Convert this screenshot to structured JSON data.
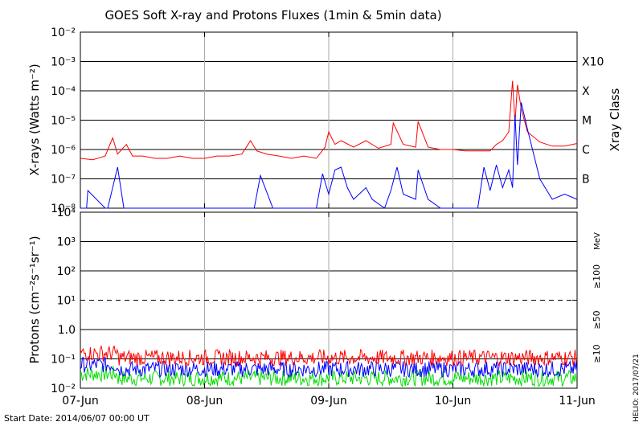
{
  "title": "GOES Soft X-ray and Protons Fluxes   (1min & 5min data)",
  "footer": {
    "start_date": "Start Date: 2014/06/07 00:00 UT",
    "credit": "HELIO: 2017/07/21"
  },
  "chart_data": [
    {
      "panel": "xray",
      "type": "line",
      "ylabel": "X-rays (Watts m⁻²)",
      "yscale": "log",
      "ylim": [
        1e-08,
        0.01
      ],
      "yticks": [
        "10⁻⁸",
        "10⁻⁷",
        "10⁻⁶",
        "10⁻⁵",
        "10⁻⁴",
        "10⁻³",
        "10⁻²"
      ],
      "grid": "horizontal lines at each decade; vertical lines at each day",
      "right_axis_title": "Xray Class",
      "classes": [
        {
          "label": "B",
          "flux": 1e-07
        },
        {
          "label": "C",
          "flux": 1e-06
        },
        {
          "label": "M",
          "flux": 1e-05
        },
        {
          "label": "X",
          "flux": 0.0001
        },
        {
          "label": "X10",
          "flux": 0.001
        }
      ],
      "series": [
        {
          "color": "#ff0000",
          "x": [
            0,
            0.1,
            0.2,
            0.26,
            0.3,
            0.37,
            0.42,
            0.5,
            0.6,
            0.7,
            0.8,
            0.9,
            1.0,
            1.1,
            1.2,
            1.3,
            1.37,
            1.42,
            1.5,
            1.6,
            1.7,
            1.8,
            1.9,
            1.97,
            2.0,
            2.05,
            2.1,
            2.2,
            2.3,
            2.4,
            2.5,
            2.52,
            2.6,
            2.7,
            2.72,
            2.8,
            2.9,
            3.0,
            3.1,
            3.2,
            3.3,
            3.35,
            3.4,
            3.45,
            3.48,
            3.5,
            3.52,
            3.55,
            3.6,
            3.7,
            3.8,
            3.9,
            4.0
          ],
          "y": [
            5e-07,
            4.5e-07,
            6e-07,
            2.5e-06,
            7e-07,
            1.5e-06,
            6e-07,
            6e-07,
            5e-07,
            5e-07,
            6e-07,
            5e-07,
            5e-07,
            6e-07,
            6e-07,
            7e-07,
            2e-06,
            9e-07,
            7e-07,
            6e-07,
            5e-07,
            6e-07,
            5e-07,
            1.2e-06,
            4e-06,
            1.5e-06,
            2e-06,
            1.2e-06,
            2e-06,
            1.1e-06,
            1.5e-06,
            8e-06,
            1.5e-06,
            1.2e-06,
            9e-06,
            1.2e-06,
            1e-06,
            1e-06,
            9e-07,
            9e-07,
            9e-07,
            1.5e-06,
            2e-06,
            4e-06,
            0.00022,
            8e-06,
            0.00016,
            2.5e-05,
            4e-06,
            1.8e-06,
            1.3e-06,
            1.3e-06,
            1.6e-06
          ]
        },
        {
          "color": "#0000ff",
          "x": [
            0,
            0.05,
            0.06,
            0.2,
            0.22,
            0.3,
            0.35,
            0.5,
            0.6,
            0.8,
            1.0,
            1.4,
            1.45,
            1.55,
            1.6,
            1.9,
            1.95,
            2.0,
            2.05,
            2.1,
            2.15,
            2.2,
            2.3,
            2.35,
            2.45,
            2.5,
            2.55,
            2.6,
            2.7,
            2.72,
            2.8,
            2.9,
            3.0,
            3.2,
            3.25,
            3.3,
            3.35,
            3.4,
            3.45,
            3.48,
            3.5,
            3.52,
            3.55,
            3.6,
            3.7,
            3.8,
            3.9,
            4.0
          ],
          "y": [
            1e-08,
            1e-08,
            4e-08,
            1e-08,
            1e-08,
            2.5e-07,
            1e-08,
            1e-08,
            1e-08,
            1e-08,
            1e-08,
            1e-08,
            1.3e-07,
            1e-08,
            1e-08,
            1e-08,
            1.5e-07,
            3e-08,
            2e-07,
            2.5e-07,
            5e-08,
            2e-08,
            5e-08,
            2e-08,
            1e-08,
            4e-08,
            2.5e-07,
            3e-08,
            2e-08,
            2e-07,
            2e-08,
            1e-08,
            1e-08,
            1e-08,
            2.5e-07,
            4e-08,
            3e-07,
            5e-08,
            2e-07,
            5e-08,
            1.5e-05,
            3e-07,
            4e-05,
            5e-06,
            1e-07,
            2e-08,
            3e-08,
            2e-08
          ]
        }
      ]
    },
    {
      "panel": "protons",
      "type": "line",
      "ylabel": "Protons (cm⁻²s⁻¹sr⁻¹)",
      "yscale": "log",
      "ylim": [
        0.01,
        10000
      ],
      "yticks": [
        "10⁻²",
        "10⁻¹",
        "1.0",
        "10¹",
        "10²",
        "10³",
        "10⁴"
      ],
      "threshold": {
        "value": 10,
        "style": "dashed"
      },
      "xlim": [
        0,
        4
      ],
      "xticks": [
        "07-Jun",
        "08-Jun",
        "09-Jun",
        "10-Jun",
        "11-Jun"
      ],
      "energy_unit": "MeV",
      "series": [
        {
          "name": "≥10",
          "color": "#ff0000",
          "level": 0.11
        },
        {
          "name": "≥50",
          "color": "#0000ff",
          "level": 0.045
        },
        {
          "name": "≥100",
          "color": "#00dd00",
          "level": 0.022
        }
      ]
    }
  ]
}
